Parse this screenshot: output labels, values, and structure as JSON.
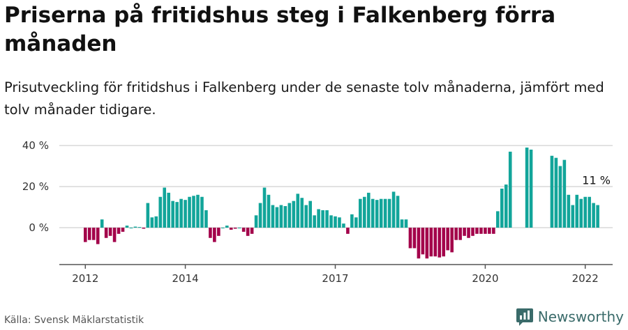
{
  "header": {
    "title": "Priserna på fritidshus steg i Falkenberg förra månaden",
    "subtitle": "Prisutveckling för fritidshus i Falkenberg under de senaste tolv månaderna, jämfört med tolv månader tidigare."
  },
  "footer": {
    "source": "Källa: Svensk Mäklarstatistik",
    "brand": "Newsworthy"
  },
  "colors": {
    "positive": "#12a59a",
    "negative": "#a3004a",
    "axis": "#555555",
    "grid": "#d9d9d9",
    "brand": "#3a6b6a"
  },
  "chart_data": {
    "type": "bar",
    "y_tick_labels": [
      "0 %",
      "20 %",
      "40 %"
    ],
    "y_ticks": [
      0,
      20,
      40
    ],
    "ylim": [
      -16,
      41
    ],
    "grid": true,
    "x_tick_labels": [
      "2012",
      "2014",
      "2017",
      "2020",
      "2022"
    ],
    "annotation": "11 %",
    "series": [
      {
        "values": [
          -7,
          -6,
          -6,
          -8,
          4,
          -5,
          -4,
          -7,
          -3,
          -2,
          1,
          0,
          0.5,
          0.3,
          -0.5,
          12,
          5,
          5.5,
          15,
          19.5,
          17,
          13,
          12.5,
          14,
          13.5,
          15,
          15.5,
          16,
          15,
          8.5,
          -5,
          -7,
          -4,
          0,
          1,
          -1,
          -0.5,
          0,
          -2,
          -4,
          -3,
          6,
          12,
          19.5,
          16,
          11,
          10,
          11,
          10.5,
          12,
          13,
          16.5,
          14.5,
          11,
          13,
          6,
          9,
          8.5,
          8.5,
          6,
          5.5,
          5,
          2,
          -3,
          6.5,
          5,
          14,
          15,
          17,
          14,
          13.5,
          14,
          14,
          14,
          17.5,
          15.5,
          4,
          4,
          -10,
          -10,
          -15,
          -13,
          -15,
          -14,
          -14,
          -14.5,
          -14,
          -11,
          -12,
          -6,
          -6,
          -4,
          -5,
          -4,
          -3,
          -3,
          -3,
          -3,
          -3,
          8,
          19,
          21,
          37,
          null,
          null,
          null,
          39,
          38,
          null,
          null,
          null,
          null,
          35,
          34,
          30,
          33,
          16,
          11,
          16,
          14,
          15,
          15,
          12,
          11
        ]
      }
    ]
  }
}
